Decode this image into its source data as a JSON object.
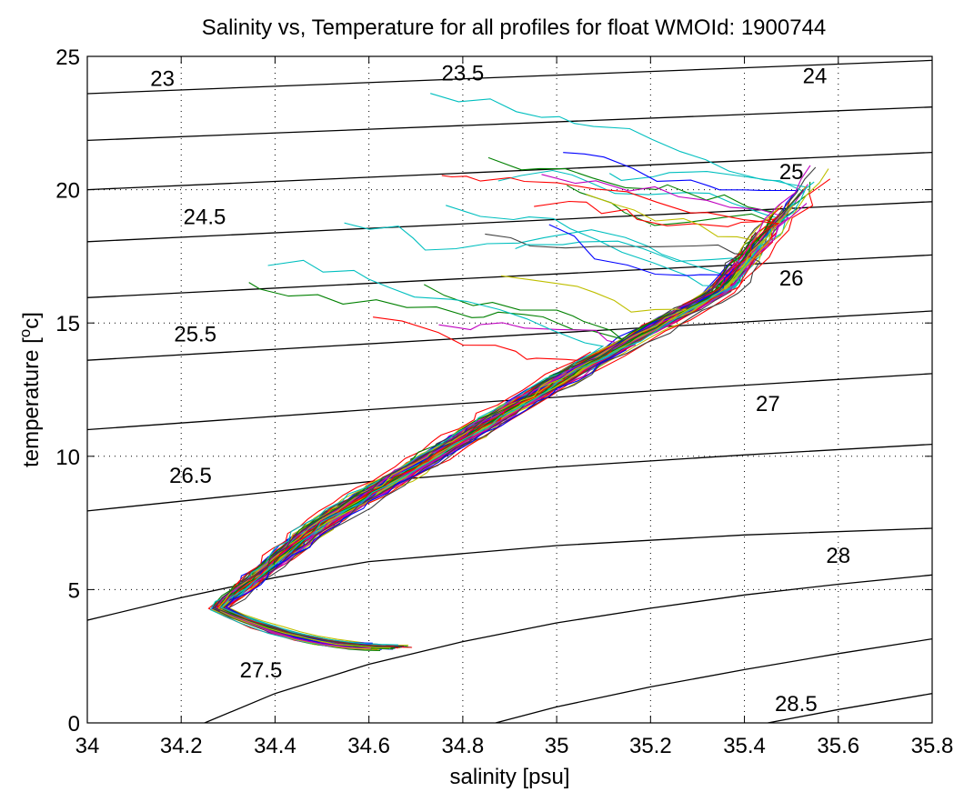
{
  "chart_data": {
    "type": "line",
    "title": "Salinity vs, Temperature for all profiles for float WMOId: 1900744",
    "xlabel": "salinity [psu]",
    "ylabel_parts": [
      "temperature [",
      "o",
      "c]"
    ],
    "xlim": [
      34,
      35.8
    ],
    "ylim": [
      0,
      25
    ],
    "x_ticks": [
      34,
      34.2,
      34.4,
      34.6,
      34.8,
      35,
      35.2,
      35.4,
      35.6,
      35.8
    ],
    "x_tick_labels": [
      "34",
      "34.2",
      "34.4",
      "34.6",
      "34.8",
      "35",
      "35.2",
      "35.4",
      "35.6",
      "35.8"
    ],
    "y_ticks": [
      0,
      5,
      10,
      15,
      20,
      25
    ],
    "y_tick_labels": [
      "0",
      "5",
      "10",
      "15",
      "20",
      "25"
    ],
    "grid": true,
    "grid_style": "dotted",
    "isopycnals": [
      {
        "label": "23",
        "points": [
          [
            34,
            23.6
          ],
          [
            35.8,
            24.85
          ]
        ],
        "label_at": [
          34.16,
          23.9
        ]
      },
      {
        "label": "23.5",
        "points": [
          [
            34,
            21.85
          ],
          [
            35.8,
            23.1
          ]
        ],
        "label_at": [
          34.8,
          24.1
        ]
      },
      {
        "label": "24",
        "points": [
          [
            34,
            20.0
          ],
          [
            35.8,
            21.4
          ]
        ],
        "label_at": [
          35.55,
          24.0
        ]
      },
      {
        "label": "24.5",
        "points": [
          [
            34,
            18.05
          ],
          [
            35.8,
            19.55
          ]
        ],
        "label_at": [
          34.25,
          18.7
        ]
      },
      {
        "label": "25",
        "points": [
          [
            34,
            15.95
          ],
          [
            35.8,
            17.55
          ]
        ],
        "label_at": [
          35.5,
          20.4
        ]
      },
      {
        "label": "25.5",
        "points": [
          [
            34,
            13.6
          ],
          [
            35.8,
            15.45
          ]
        ],
        "label_at": [
          34.23,
          14.3
        ]
      },
      {
        "label": "26",
        "points": [
          [
            34,
            11.0
          ],
          [
            34.6,
            11.75
          ],
          [
            35.2,
            12.45
          ],
          [
            35.8,
            13.1
          ]
        ],
        "label_at": [
          35.5,
          16.4
        ]
      },
      {
        "label": "26.5",
        "points": [
          [
            34,
            7.95
          ],
          [
            34.3,
            8.5
          ],
          [
            34.6,
            9.05
          ],
          [
            35.0,
            9.6
          ],
          [
            35.4,
            10.05
          ],
          [
            35.8,
            10.45
          ]
        ],
        "label_at": [
          34.22,
          9.0
        ]
      },
      {
        "label": "27",
        "points": [
          [
            34,
            3.85
          ],
          [
            34.2,
            4.7
          ],
          [
            34.4,
            5.45
          ],
          [
            34.6,
            6.05
          ],
          [
            35.0,
            6.65
          ],
          [
            35.4,
            7.05
          ],
          [
            35.8,
            7.3
          ]
        ],
        "label_at": [
          35.45,
          11.7
        ]
      },
      {
        "label": "27.5",
        "points": [
          [
            34.25,
            0
          ],
          [
            34.4,
            1.1
          ],
          [
            34.6,
            2.2
          ],
          [
            34.8,
            3.05
          ],
          [
            35.0,
            3.75
          ],
          [
            35.2,
            4.3
          ],
          [
            35.4,
            4.8
          ],
          [
            35.6,
            5.2
          ],
          [
            35.8,
            5.55
          ]
        ],
        "label_at": [
          34.37,
          1.7
        ]
      },
      {
        "label": "28",
        "points": [
          [
            34.87,
            0
          ],
          [
            35.0,
            0.6
          ],
          [
            35.2,
            1.35
          ],
          [
            35.4,
            2.0
          ],
          [
            35.6,
            2.6
          ],
          [
            35.8,
            3.15
          ]
        ],
        "label_at": [
          35.6,
          6.0
        ]
      },
      {
        "label": "28.5",
        "points": [
          [
            35.45,
            0
          ],
          [
            35.6,
            0.5
          ],
          [
            35.8,
            1.1
          ]
        ],
        "label_at": [
          35.51,
          0.45
        ]
      }
    ],
    "series_colors": [
      "#0000ff",
      "#008000",
      "#ff0000",
      "#00bfbf",
      "#bf00bf",
      "#bfbf00",
      "#404040"
    ],
    "profile_count": 112,
    "profile_shape": {
      "deep_end": [
        34.62,
        2.85
      ],
      "turn": [
        34.28,
        4.3
      ],
      "mid": [
        34.5,
        7.5
      ],
      "thermocline": [
        35.0,
        12.8
      ],
      "upper": [
        35.35,
        16.2
      ],
      "surface": [
        35.5,
        19.5
      ]
    }
  }
}
